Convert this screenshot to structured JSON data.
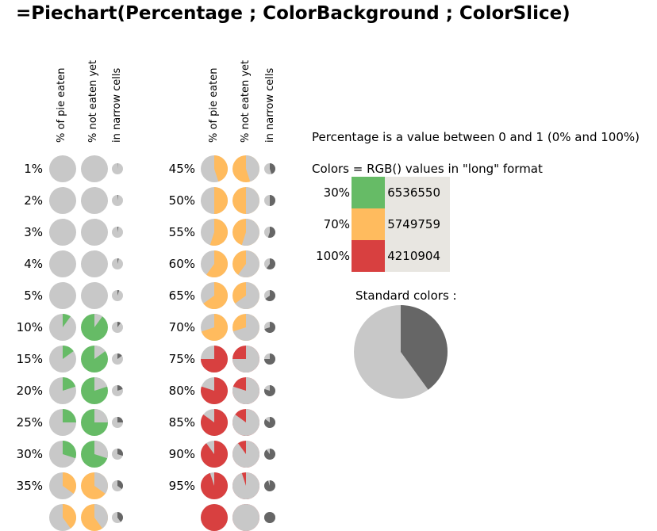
{
  "title": "=Piechart(Percentage ; ColorBackground ; ColorSlice)",
  "column_headers": {
    "eaten": "% of pie eaten",
    "not_eaten": "% not eaten yet",
    "narrow": "in narrow cells"
  },
  "rows_left": [
    {
      "label": "1%",
      "value": 0.01
    },
    {
      "label": "2%",
      "value": 0.02
    },
    {
      "label": "3%",
      "value": 0.03
    },
    {
      "label": "4%",
      "value": 0.04
    },
    {
      "label": "5%",
      "value": 0.05
    },
    {
      "label": "10%",
      "value": 0.1
    },
    {
      "label": "15%",
      "value": 0.15
    },
    {
      "label": "20%",
      "value": 0.2
    },
    {
      "label": "25%",
      "value": 0.25
    },
    {
      "label": "30%",
      "value": 0.3
    },
    {
      "label": "35%",
      "value": 0.35
    },
    {
      "label": "",
      "value": 0.4
    }
  ],
  "rows_right": [
    {
      "label": "45%",
      "value": 0.45
    },
    {
      "label": "50%",
      "value": 0.5
    },
    {
      "label": "55%",
      "value": 0.55
    },
    {
      "label": "60%",
      "value": 0.6
    },
    {
      "label": "65%",
      "value": 0.65
    },
    {
      "label": "70%",
      "value": 0.7
    },
    {
      "label": "75%",
      "value": 0.75
    },
    {
      "label": "80%",
      "value": 0.8
    },
    {
      "label": "85%",
      "value": 0.85
    },
    {
      "label": "90%",
      "value": 0.9
    },
    {
      "label": "95%",
      "value": 0.95
    },
    {
      "label": "",
      "value": 1.0
    }
  ],
  "info": {
    "percentage_note": "Percentage is a value between 0 and 1 (0% and 100%)",
    "colors_note": "Colors = RGB() values in \"long\" format",
    "standard_colors_label": "Standard colors :"
  },
  "color_table": [
    {
      "pct": "30%",
      "color": "#66bb66",
      "value": "6536550"
    },
    {
      "pct": "70%",
      "color": "#ffbb5e",
      "value": "5749759"
    },
    {
      "pct": "100%",
      "color": "#d84040",
      "value": "4210904"
    }
  ],
  "standard_pie": {
    "value": 0.4,
    "background": "#c8c8c8",
    "slice": "#666666"
  },
  "palette": {
    "gray": "#c8c8c8",
    "green": "#66bb66",
    "orange": "#ffbb5e",
    "red": "#d84040",
    "dark": "#666666"
  }
}
